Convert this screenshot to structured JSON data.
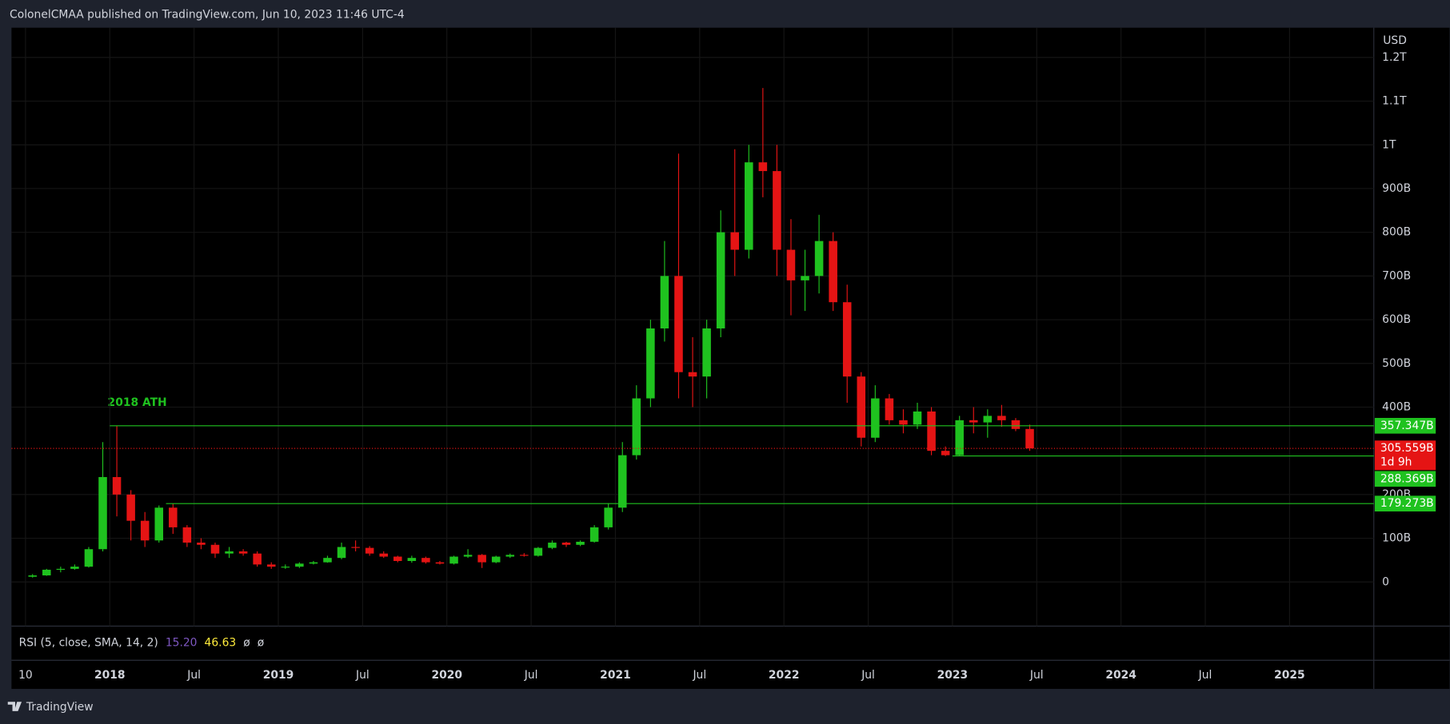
{
  "header": "ColonelCMAA published on TradingView.com, Jun 10, 2023 11:46 UTC-4",
  "footer": "TradingView",
  "chart_data": {
    "type": "candlestick",
    "currency": "USD",
    "annotation": "2018 ATH",
    "up_color": "#1fc21f",
    "down_color": "#e51414",
    "grid": true,
    "x": [
      "2017-07",
      "2017-08",
      "2017-09",
      "2017-10",
      "2017-11",
      "2017-12",
      "2018-01",
      "2018-02",
      "2018-03",
      "2018-04",
      "2018-05",
      "2018-06",
      "2018-07",
      "2018-08",
      "2018-09",
      "2018-10",
      "2018-11",
      "2018-12",
      "2019-01",
      "2019-02",
      "2019-03",
      "2019-04",
      "2019-05",
      "2019-06",
      "2019-07",
      "2019-08",
      "2019-09",
      "2019-10",
      "2019-11",
      "2019-12",
      "2020-01",
      "2020-02",
      "2020-03",
      "2020-04",
      "2020-05",
      "2020-06",
      "2020-07",
      "2020-08",
      "2020-09",
      "2020-10",
      "2020-11",
      "2020-12",
      "2021-01",
      "2021-02",
      "2021-03",
      "2021-04",
      "2021-05",
      "2021-06",
      "2021-07",
      "2021-08",
      "2021-09",
      "2021-10",
      "2021-11",
      "2021-12",
      "2022-01",
      "2022-02",
      "2022-03",
      "2022-04",
      "2022-05",
      "2022-06",
      "2022-07",
      "2022-08",
      "2022-09",
      "2022-10",
      "2022-11",
      "2022-12",
      "2023-01",
      "2023-02",
      "2023-03",
      "2023-04",
      "2023-05",
      "2023-06"
    ],
    "open": [
      12,
      15,
      28,
      30,
      35,
      75,
      240,
      200,
      140,
      95,
      170,
      125,
      90,
      85,
      65,
      70,
      65,
      40,
      35,
      35,
      42,
      45,
      55,
      80,
      78,
      65,
      58,
      48,
      55,
      45,
      42,
      58,
      62,
      45,
      58,
      62,
      60,
      78,
      90,
      85,
      92,
      125,
      170,
      290,
      420,
      580,
      700,
      480,
      470,
      580,
      800,
      760,
      960,
      940,
      760,
      690,
      700,
      780,
      640,
      470,
      330,
      420,
      370,
      360,
      390,
      300,
      290,
      370,
      365,
      380,
      370,
      350
    ],
    "high": [
      18,
      30,
      35,
      40,
      80,
      320,
      357,
      210,
      160,
      175,
      179,
      130,
      100,
      90,
      80,
      75,
      70,
      45,
      40,
      45,
      48,
      60,
      90,
      95,
      82,
      70,
      60,
      60,
      58,
      48,
      60,
      75,
      64,
      60,
      65,
      66,
      80,
      95,
      92,
      95,
      130,
      180,
      320,
      450,
      600,
      780,
      980,
      560,
      600,
      850,
      990,
      1000,
      1130,
      1000,
      830,
      760,
      840,
      800,
      680,
      480,
      450,
      430,
      395,
      410,
      400,
      310,
      380,
      400,
      395,
      405,
      375,
      360
    ],
    "low": [
      10,
      14,
      22,
      28,
      33,
      70,
      150,
      95,
      80,
      90,
      110,
      80,
      75,
      55,
      55,
      60,
      35,
      30,
      30,
      32,
      40,
      44,
      52,
      70,
      60,
      55,
      45,
      44,
      42,
      40,
      40,
      55,
      32,
      43,
      55,
      58,
      58,
      75,
      80,
      82,
      90,
      120,
      160,
      280,
      400,
      550,
      420,
      400,
      420,
      560,
      700,
      740,
      880,
      700,
      610,
      620,
      660,
      620,
      410,
      310,
      320,
      360,
      340,
      350,
      290,
      288,
      288,
      340,
      330,
      355,
      345,
      300
    ],
    "close": [
      15,
      28,
      30,
      35,
      75,
      240,
      200,
      140,
      95,
      170,
      125,
      90,
      85,
      65,
      70,
      65,
      40,
      35,
      35,
      42,
      45,
      55,
      80,
      78,
      65,
      58,
      48,
      55,
      45,
      42,
      58,
      62,
      45,
      58,
      62,
      60,
      78,
      90,
      85,
      92,
      125,
      170,
      290,
      420,
      580,
      700,
      480,
      470,
      580,
      800,
      760,
      960,
      940,
      760,
      690,
      700,
      780,
      640,
      470,
      330,
      420,
      370,
      360,
      390,
      300,
      290,
      370,
      365,
      380,
      370,
      350,
      305.559
    ],
    "xlim": [
      "2017-06",
      "2025-07"
    ],
    "xticks": [
      {
        "value": "2017-07",
        "label": "10"
      },
      {
        "value": "2018-01",
        "label": "2018"
      },
      {
        "value": "2018-07",
        "label": "Jul"
      },
      {
        "value": "2019-01",
        "label": "2019"
      },
      {
        "value": "2019-07",
        "label": "Jul"
      },
      {
        "value": "2020-01",
        "label": "2020"
      },
      {
        "value": "2020-07",
        "label": "Jul"
      },
      {
        "value": "2021-01",
        "label": "2021"
      },
      {
        "value": "2021-07",
        "label": "Jul"
      },
      {
        "value": "2022-01",
        "label": "2022"
      },
      {
        "value": "2022-07",
        "label": "Jul"
      },
      {
        "value": "2023-01",
        "label": "2023"
      },
      {
        "value": "2023-07",
        "label": "Jul"
      },
      {
        "value": "2024-01",
        "label": "2024"
      },
      {
        "value": "2024-07",
        "label": "Jul"
      },
      {
        "value": "2025-01",
        "label": "2025"
      }
    ],
    "ylim": [
      -101,
      1268
    ],
    "yticks": [
      0,
      {
        "value": 100,
        "label": "100B"
      },
      {
        "value": 200,
        "label": "200B"
      },
      {
        "value": 400,
        "label": "400B"
      },
      {
        "value": 500,
        "label": "500B"
      },
      {
        "value": 600,
        "label": "600B"
      },
      {
        "value": 700,
        "label": "700B"
      },
      {
        "value": 800,
        "label": "800B"
      },
      {
        "value": 900,
        "label": "900B"
      },
      {
        "value": 1000,
        "label": "1T"
      },
      {
        "value": 1100,
        "label": "1.1T"
      },
      {
        "value": 1200,
        "label": "1.2T"
      }
    ],
    "levels": [
      {
        "value": 357.347,
        "label": "357.347B",
        "from": "2018-01"
      },
      {
        "value": 288.369,
        "label": "288.369B",
        "from": "2023-01"
      },
      {
        "value": 179.273,
        "label": "179.273B",
        "from": "2018-05"
      }
    ],
    "last_price": {
      "value": 305.559,
      "label": "305.559B",
      "countdown": "1d 9h"
    },
    "indicator": {
      "name": "RSI (5, close, SMA, 14, 2)",
      "values": [
        {
          "value": 15.2,
          "label": "15.20"
        },
        46.63
      ],
      "extra": [
        "ø",
        "ø"
      ]
    }
  }
}
